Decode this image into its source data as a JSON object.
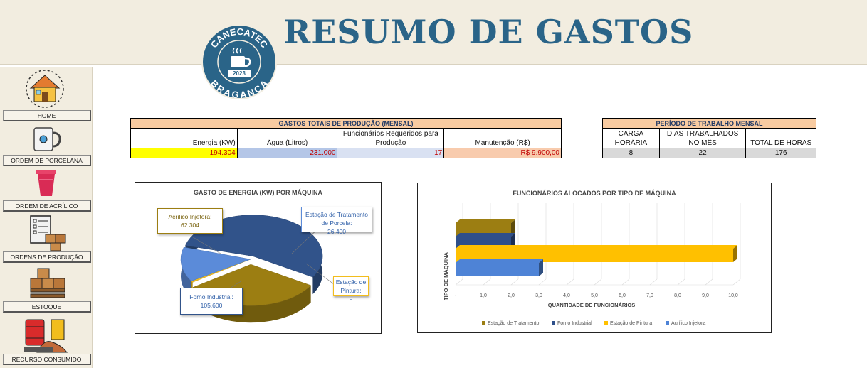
{
  "header": {
    "title": "RESUMO DE GASTOS"
  },
  "logo": {
    "brand": "CANECATEC",
    "year": "2023",
    "city": "BRAGANÇA"
  },
  "sidebar": {
    "items": [
      {
        "label": "HOME",
        "icon": "home-icon"
      },
      {
        "label": "ORDEM DE PORCELANA",
        "icon": "mug-icon"
      },
      {
        "label": "ORDEM DE ACRÍLICO",
        "icon": "cup-icon"
      },
      {
        "label": "ORDENS DE PRODUÇÃO",
        "icon": "checklist-boxes-icon"
      },
      {
        "label": "ESTOQUE",
        "icon": "pallet-boxes-icon"
      },
      {
        "label": "RECURSO CONSUMIDO",
        "icon": "barrels-icon"
      }
    ]
  },
  "gastos": {
    "title": "GASTOS TOTAIS DE PRODUÇÃO (MENSAL)",
    "headers": [
      "Energia (KW)",
      "Água (Litros)",
      "Funcionários Requeridos para Produção",
      "Manutenção (R$)"
    ],
    "values": [
      "194.304",
      "231.000",
      "17",
      "R$ 9.900,00"
    ],
    "colors": {
      "energia": "#ffff00",
      "agua": "#b4c6e7",
      "func": "#d9e1f2",
      "manut": "#f8cbad",
      "value_text": "#c00000"
    }
  },
  "periodo": {
    "title": "PERÍODO DE TRABALHO MENSAL",
    "headers": [
      "CARGA HORÁRIA",
      "DIAS TRABALHADOS NO MÊS",
      "TOTAL DE HORAS"
    ],
    "values": [
      "8",
      "22",
      "176"
    ]
  },
  "chart_data": [
    {
      "type": "pie",
      "title": "GASTO DE ENERGIA (KW) POR MÁQUINA",
      "categories": [
        "Acrílico Injetora",
        "Estação de Tratamento de Porcela",
        "Estação de Pintura",
        "Forno Industrial"
      ],
      "values": [
        62304,
        26400,
        0,
        105600
      ],
      "colors": [
        "#9c7e12",
        "#5b8bd9",
        "#f2bd1d",
        "#31538a"
      ],
      "labels": [
        {
          "name": "Acrílico Injetora:",
          "value": "62.304"
        },
        {
          "name": "Estação de Tratamento de Porcela:",
          "value": "26.400"
        },
        {
          "name": "Estação de Pintura:",
          "value": "-"
        },
        {
          "name": "Forno Industrial:",
          "value": "105.600"
        }
      ]
    },
    {
      "type": "bar",
      "orientation": "horizontal",
      "title": "FUNCIONÁRIOS ALOCADOS POR TIPO DE MÁQUINA",
      "xlabel": "QUANTIDADE DE FUNCIONÁRIOS",
      "ylabel": "TIPO DE MÁQUINA",
      "xlim": [
        0,
        10
      ],
      "xticks": [
        "-",
        "1,0",
        "2,0",
        "3,0",
        "4,0",
        "5,0",
        "6,0",
        "7,0",
        "8,0",
        "9,0",
        "10,0"
      ],
      "series": [
        {
          "name": "Estação de Tratamento",
          "value": 2,
          "color": "#9c7e12"
        },
        {
          "name": "Forno Industrial",
          "value": 2,
          "color": "#2e4f8a"
        },
        {
          "name": "Estação de Pintura",
          "value": 10,
          "color": "#ffc000"
        },
        {
          "name": "Acrílico Injetora",
          "value": 3,
          "color": "#4e83d6"
        }
      ],
      "legend_position": "bottom"
    }
  ]
}
